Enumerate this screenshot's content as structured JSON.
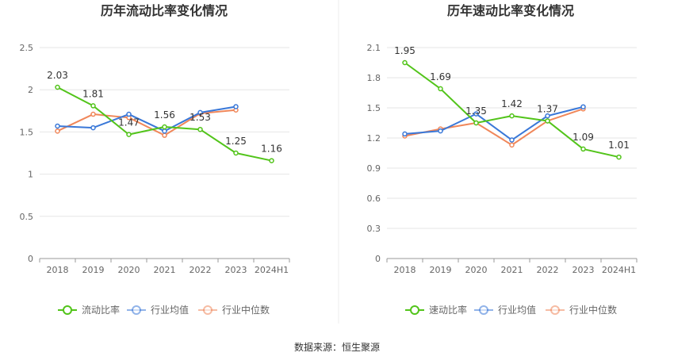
{
  "source_text": "数据来源：恒生聚源",
  "chart_data": [
    {
      "type": "line",
      "title": "历年流动比率变化情况",
      "categories": [
        "2018",
        "2019",
        "2020",
        "2021",
        "2022",
        "2023",
        "2024H1"
      ],
      "ylim": [
        0,
        2.5
      ],
      "yticks": [
        "0",
        "0.5",
        "1",
        "1.5",
        "2",
        "2.5"
      ],
      "ytick_values": [
        0,
        0.5,
        1,
        1.5,
        2,
        2.5
      ],
      "series": [
        {
          "name": "流动比率",
          "color": "#52c41a",
          "values": [
            2.03,
            1.81,
            1.47,
            1.56,
            1.53,
            1.25,
            1.16
          ],
          "labels": [
            "2.03",
            "1.81",
            "1.47",
            "1.56",
            "1.53",
            "1.25",
            "1.16"
          ]
        },
        {
          "name": "行业均值",
          "color": "#3a78d8",
          "values": [
            1.57,
            1.55,
            1.71,
            1.51,
            1.73,
            1.8,
            null
          ]
        },
        {
          "name": "行业中位数",
          "color": "#f0875a",
          "values": [
            1.51,
            1.71,
            1.67,
            1.46,
            1.72,
            1.76,
            null
          ]
        }
      ]
    },
    {
      "type": "line",
      "title": "历年速动比率变化情况",
      "categories": [
        "2018",
        "2019",
        "2020",
        "2021",
        "2022",
        "2023",
        "2024H1"
      ],
      "ylim": [
        0,
        2.1
      ],
      "yticks": [
        "0",
        "0.3",
        "0.6",
        "0.9",
        "1.2",
        "1.5",
        "1.8",
        "2.1"
      ],
      "ytick_values": [
        0,
        0.3,
        0.6,
        0.9,
        1.2,
        1.5,
        1.8,
        2.1
      ],
      "series": [
        {
          "name": "速动比率",
          "color": "#52c41a",
          "values": [
            1.95,
            1.69,
            1.35,
            1.42,
            1.37,
            1.09,
            1.01
          ],
          "labels": [
            "1.95",
            "1.69",
            "1.35",
            "1.42",
            "1.37",
            "1.09",
            "1.01"
          ]
        },
        {
          "name": "行业均值",
          "color": "#3a78d8",
          "values": [
            1.24,
            1.27,
            1.44,
            1.18,
            1.42,
            1.51,
            null
          ]
        },
        {
          "name": "行业中位数",
          "color": "#f0875a",
          "values": [
            1.22,
            1.29,
            1.35,
            1.13,
            1.37,
            1.49,
            null
          ]
        }
      ]
    }
  ]
}
